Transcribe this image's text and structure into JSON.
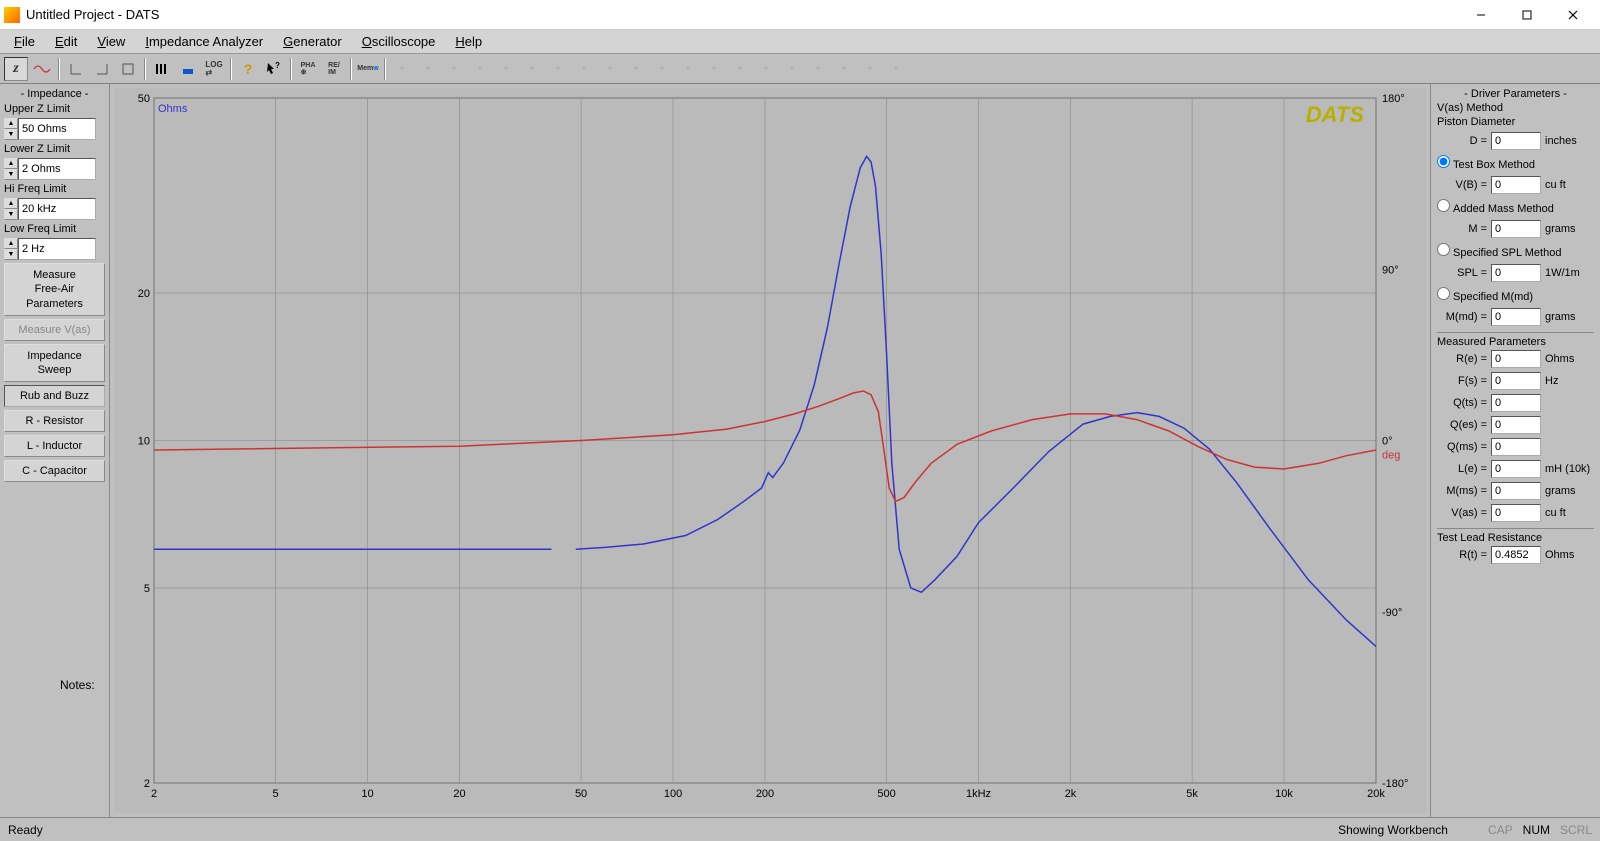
{
  "window": {
    "title": "Untitled Project - DATS"
  },
  "menu": {
    "file": "File",
    "edit": "Edit",
    "view": "View",
    "imp": "Impedance Analyzer",
    "gen": "Generator",
    "osc": "Oscilloscope",
    "help": "Help"
  },
  "left": {
    "header": "- Impedance -",
    "upperZ": {
      "label": "Upper Z Limit",
      "value": "50 Ohms"
    },
    "lowerZ": {
      "label": "Lower Z Limit",
      "value": "2 Ohms"
    },
    "hiFreq": {
      "label": "Hi Freq Limit",
      "value": "20 kHz"
    },
    "lowFreq": {
      "label": "Low Freq Limit",
      "value": "2 Hz"
    },
    "measureFree": "Measure\nFree-Air\nParameters",
    "measureVas": "Measure V(as)",
    "sweep": "Impedance\nSweep",
    "rub": "Rub and Buzz",
    "r": "R - Resistor",
    "l": "L - Inductor",
    "c": "C - Capacitor"
  },
  "chart": {
    "logo": "DATS",
    "yLeftLabel": "Ohms",
    "yRightLabel": "deg",
    "yLeft": {
      "min": 2,
      "max": 50,
      "ticks": [
        2,
        5,
        10,
        20,
        50
      ],
      "color": "#3333cc"
    },
    "yRight": {
      "min": -180,
      "max": 180,
      "ticks": [
        -180,
        -90,
        0,
        90,
        180
      ],
      "color": "#cc3333"
    },
    "x": {
      "min": 2,
      "max": 20000,
      "ticks": [
        2,
        5,
        10,
        20,
        50,
        100,
        200,
        500,
        "1kHz",
        "2k",
        "5k",
        "10k",
        "20k"
      ],
      "tickVals": [
        2,
        5,
        10,
        20,
        50,
        100,
        200,
        500,
        1000,
        2000,
        5000,
        10000,
        20000
      ]
    },
    "impedance": {
      "color": "#3333cc",
      "width": 1.5,
      "points": [
        [
          2,
          6
        ],
        [
          10,
          6
        ],
        [
          20,
          6
        ],
        [
          30,
          6
        ],
        [
          40,
          6
        ],
        [
          48,
          6
        ],
        [
          60,
          6.05
        ],
        [
          80,
          6.15
        ],
        [
          110,
          6.4
        ],
        [
          140,
          6.9
        ],
        [
          170,
          7.5
        ],
        [
          195,
          8
        ],
        [
          205,
          8.6
        ],
        [
          212,
          8.4
        ],
        [
          230,
          9
        ],
        [
          260,
          10.5
        ],
        [
          290,
          13
        ],
        [
          320,
          17
        ],
        [
          350,
          23
        ],
        [
          380,
          30
        ],
        [
          410,
          36
        ],
        [
          430,
          38
        ],
        [
          445,
          37
        ],
        [
          460,
          33
        ],
        [
          480,
          24
        ],
        [
          500,
          15
        ],
        [
          520,
          9
        ],
        [
          550,
          6
        ],
        [
          600,
          5
        ],
        [
          650,
          4.9
        ],
        [
          720,
          5.2
        ],
        [
          850,
          5.8
        ],
        [
          1000,
          6.8
        ],
        [
          1300,
          8
        ],
        [
          1700,
          9.5
        ],
        [
          2200,
          10.8
        ],
        [
          2700,
          11.2
        ],
        [
          3300,
          11.4
        ],
        [
          3900,
          11.2
        ],
        [
          4700,
          10.6
        ],
        [
          5700,
          9.6
        ],
        [
          7000,
          8.2
        ],
        [
          9000,
          6.6
        ],
        [
          12000,
          5.2
        ],
        [
          16000,
          4.3
        ],
        [
          20000,
          3.8
        ]
      ]
    },
    "phase": {
      "color": "#cc3333",
      "width": 1.5,
      "points": [
        [
          2,
          -5
        ],
        [
          20,
          -3
        ],
        [
          50,
          0
        ],
        [
          100,
          3
        ],
        [
          150,
          6
        ],
        [
          200,
          10
        ],
        [
          250,
          14
        ],
        [
          300,
          18
        ],
        [
          350,
          22
        ],
        [
          390,
          25
        ],
        [
          420,
          26
        ],
        [
          445,
          24
        ],
        [
          470,
          15
        ],
        [
          490,
          -5
        ],
        [
          510,
          -25
        ],
        [
          535,
          -32
        ],
        [
          570,
          -30
        ],
        [
          620,
          -22
        ],
        [
          700,
          -12
        ],
        [
          850,
          -2
        ],
        [
          1100,
          5
        ],
        [
          1500,
          11
        ],
        [
          2000,
          14
        ],
        [
          2600,
          14
        ],
        [
          3300,
          11
        ],
        [
          4200,
          5
        ],
        [
          5200,
          -3
        ],
        [
          6500,
          -10
        ],
        [
          8000,
          -14
        ],
        [
          10000,
          -15
        ],
        [
          13000,
          -12
        ],
        [
          16000,
          -8
        ],
        [
          20000,
          -5
        ]
      ]
    },
    "grid": {
      "color": "#808080"
    },
    "bg": "#bababa"
  },
  "right": {
    "header": "- Driver Parameters -",
    "vasMethod": "V(as) Method",
    "piston": {
      "label": "Piston Diameter",
      "param": "D =",
      "value": "0",
      "unit": "inches"
    },
    "testBox": {
      "label": "Test Box Method",
      "param": "V(B) =",
      "value": "0",
      "unit": "cu ft",
      "checked": true
    },
    "addedMass": {
      "label": "Added Mass Method",
      "param": "M =",
      "value": "0",
      "unit": "grams"
    },
    "spl": {
      "label": "Specified SPL Method",
      "param": "SPL =",
      "value": "0",
      "unit": "1W/1m"
    },
    "mmd": {
      "label": "Specified M(md)",
      "param": "M(md) =",
      "value": "0",
      "unit": "grams"
    },
    "measured": {
      "header": "Measured Parameters",
      "Re": {
        "p": "R(e) =",
        "v": "0",
        "u": "Ohms"
      },
      "Fs": {
        "p": "F(s) =",
        "v": "0",
        "u": "Hz"
      },
      "Qts": {
        "p": "Q(ts) =",
        "v": "0",
        "u": ""
      },
      "Qes": {
        "p": "Q(es) =",
        "v": "0",
        "u": ""
      },
      "Qms": {
        "p": "Q(ms) =",
        "v": "0",
        "u": ""
      },
      "Le": {
        "p": "L(e) =",
        "v": "0",
        "u": "mH (10k)"
      },
      "Mms": {
        "p": "M(ms) =",
        "v": "0",
        "u": "grams"
      },
      "Vas": {
        "p": "V(as) =",
        "v": "0",
        "u": "cu ft"
      }
    },
    "testLead": {
      "header": "Test Lead Resistance",
      "p": "R(t) =",
      "v": "0.4852",
      "u": "Ohms"
    }
  },
  "notes": {
    "label": "Notes:"
  },
  "status": {
    "ready": "Ready",
    "wb": "Showing Workbench",
    "cap": "CAP",
    "num": "NUM",
    "scrl": "SCRL"
  }
}
